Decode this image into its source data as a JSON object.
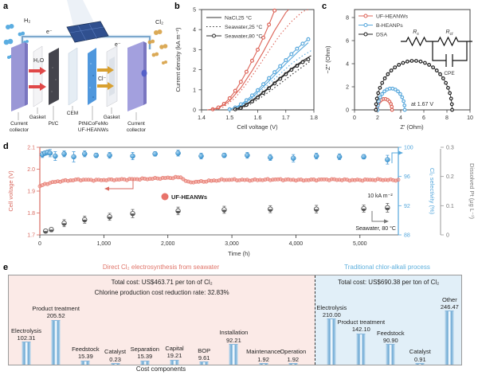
{
  "panels": {
    "a": "a",
    "b": "b",
    "c": "c",
    "d": "d",
    "e": "e"
  },
  "panel_a": {
    "labels": {
      "h2": "H₂",
      "cl2": "Cl₂",
      "e1": "e⁻",
      "e2": "e⁻",
      "h2o": "H₂O",
      "cl": "Cl⁻"
    },
    "components": [
      "Current collector",
      "Gasket",
      "Pt/C",
      "CEM",
      "PtNiCoFeMo UF-HEANWs",
      "Gasket",
      "Current collector"
    ]
  },
  "chart_data": [
    {
      "id": "b",
      "type": "line",
      "xlabel": "Cell voltage (V)",
      "ylabel": "Current density (kA m⁻²)",
      "xlim": [
        1.4,
        1.8
      ],
      "ylim": [
        0,
        5
      ],
      "xticks": [
        "1.4",
        "1.5",
        "1.6",
        "1.7",
        "1.8"
      ],
      "yticks": [
        "0",
        "1",
        "2",
        "3",
        "4",
        "5"
      ],
      "legend": [
        {
          "label": "NaCl,25 °C",
          "style": "solid"
        },
        {
          "label": "Seawater,25 °C",
          "style": "dotted"
        },
        {
          "label": "Seawater,80 °C",
          "style": "circles"
        }
      ],
      "series": [
        {
          "name": "UF-HEANWs-seawater-80C",
          "color": "#dd6458",
          "style": "circles",
          "points": [
            [
              1.44,
              0.03
            ],
            [
              1.46,
              0.12
            ],
            [
              1.48,
              0.3
            ],
            [
              1.5,
              0.58
            ],
            [
              1.52,
              0.95
            ],
            [
              1.54,
              1.4
            ],
            [
              1.56,
              1.9
            ],
            [
              1.58,
              2.45
            ],
            [
              1.6,
              3.0
            ],
            [
              1.62,
              3.6
            ],
            [
              1.64,
              4.25
            ],
            [
              1.66,
              4.95
            ]
          ]
        },
        {
          "name": "UF-HEANWs-NaCl-25C",
          "color": "#dd6458",
          "style": "solid",
          "points": [
            [
              1.42,
              0.0
            ],
            [
              1.46,
              0.08
            ],
            [
              1.5,
              0.45
            ],
            [
              1.54,
              1.1
            ],
            [
              1.58,
              1.95
            ],
            [
              1.62,
              2.9
            ],
            [
              1.66,
              3.95
            ],
            [
              1.7,
              4.85
            ],
            [
              1.71,
              5.0
            ]
          ]
        },
        {
          "name": "UF-HEANWs-seawater-25C",
          "color": "#dd6458",
          "style": "dotted",
          "points": [
            [
              1.44,
              0.0
            ],
            [
              1.48,
              0.15
            ],
            [
              1.52,
              0.6
            ],
            [
              1.56,
              1.3
            ],
            [
              1.6,
              2.1
            ],
            [
              1.64,
              2.95
            ],
            [
              1.68,
              3.75
            ],
            [
              1.72,
              4.4
            ],
            [
              1.76,
              4.9
            ],
            [
              1.78,
              5.0
            ]
          ]
        },
        {
          "name": "B-HEANPs-seawater-80C",
          "color": "#58a8dc",
          "style": "circles",
          "points": [
            [
              1.5,
              0.03
            ],
            [
              1.52,
              0.12
            ],
            [
              1.54,
              0.28
            ],
            [
              1.56,
              0.48
            ],
            [
              1.58,
              0.72
            ],
            [
              1.6,
              0.98
            ],
            [
              1.62,
              1.28
            ],
            [
              1.64,
              1.58
            ],
            [
              1.66,
              1.88
            ],
            [
              1.68,
              2.18
            ],
            [
              1.7,
              2.48
            ],
            [
              1.72,
              2.78
            ],
            [
              1.74,
              3.05
            ],
            [
              1.76,
              3.3
            ],
            [
              1.78,
              3.52
            ]
          ]
        },
        {
          "name": "B-HEANPs-NaCl-25C",
          "color": "#58a8dc",
          "style": "solid",
          "points": [
            [
              1.5,
              0.02
            ],
            [
              1.54,
              0.22
            ],
            [
              1.58,
              0.62
            ],
            [
              1.62,
              1.15
            ],
            [
              1.66,
              1.72
            ],
            [
              1.7,
              2.3
            ],
            [
              1.74,
              2.85
            ],
            [
              1.78,
              3.35
            ]
          ]
        },
        {
          "name": "B-HEANPs-seawater-25C",
          "color": "#58a8dc",
          "style": "dotted",
          "points": [
            [
              1.52,
              0.05
            ],
            [
              1.56,
              0.35
            ],
            [
              1.6,
              0.8
            ],
            [
              1.64,
              1.3
            ],
            [
              1.68,
              1.8
            ],
            [
              1.72,
              2.3
            ],
            [
              1.76,
              2.7
            ],
            [
              1.79,
              2.95
            ]
          ]
        },
        {
          "name": "DSA-seawater-80C",
          "color": "#2a2a2a",
          "style": "circles",
          "points": [
            [
              1.52,
              0.03
            ],
            [
              1.54,
              0.1
            ],
            [
              1.56,
              0.25
            ],
            [
              1.58,
              0.42
            ],
            [
              1.6,
              0.62
            ],
            [
              1.62,
              0.85
            ],
            [
              1.64,
              1.08
            ],
            [
              1.66,
              1.32
            ],
            [
              1.68,
              1.55
            ],
            [
              1.7,
              1.78
            ],
            [
              1.72,
              2.0
            ],
            [
              1.74,
              2.2
            ],
            [
              1.76,
              2.38
            ],
            [
              1.78,
              2.52
            ]
          ]
        },
        {
          "name": "DSA-NaCl-25C",
          "color": "#2a2a2a",
          "style": "solid",
          "points": [
            [
              1.52,
              0.02
            ],
            [
              1.56,
              0.28
            ],
            [
              1.6,
              0.68
            ],
            [
              1.64,
              1.12
            ],
            [
              1.68,
              1.6
            ],
            [
              1.72,
              2.05
            ],
            [
              1.76,
              2.45
            ],
            [
              1.79,
              2.7
            ]
          ]
        },
        {
          "name": "DSA-seawater-25C",
          "color": "#2a2a2a",
          "style": "dotted",
          "points": [
            [
              1.53,
              0.02
            ],
            [
              1.57,
              0.25
            ],
            [
              1.61,
              0.6
            ],
            [
              1.65,
              1.0
            ],
            [
              1.69,
              1.42
            ],
            [
              1.73,
              1.85
            ],
            [
              1.77,
              2.25
            ],
            [
              1.79,
              2.45
            ]
          ]
        }
      ]
    },
    {
      "id": "c",
      "type": "scatter",
      "xlabel": "Z′ (Ohm)",
      "ylabel": "−Z″ (Ohm)",
      "xlim": [
        0,
        10
      ],
      "ylim": [
        0,
        8
      ],
      "xticks": [
        "0",
        "2",
        "4",
        "6",
        "8",
        "10"
      ],
      "yticks": [
        "0",
        "2",
        "4",
        "6",
        "8"
      ],
      "annotation": "at 1.67 V",
      "series": [
        {
          "name": "UF-HEANWs",
          "color": "#dd6458",
          "arc": {
            "x0": 1.95,
            "x1": 3.25,
            "peak": 0.95,
            "n": 11
          }
        },
        {
          "name": "B-HEANPs",
          "color": "#58a8dc",
          "arc": {
            "x0": 2.0,
            "x1": 4.35,
            "peak": 1.85,
            "n": 15
          }
        },
        {
          "name": "DSA",
          "color": "#222222",
          "arc": {
            "x0": 1.85,
            "x1": 8.45,
            "peak": 4.25,
            "n": 27
          }
        }
      ],
      "circuit": {
        "rs": {
          "main": "R",
          "sub": "s"
        },
        "rct": {
          "main": "R",
          "sub": "ct"
        },
        "cpe": "CPE"
      }
    },
    {
      "id": "d",
      "type": "stability",
      "xlabel": "Time (h)",
      "xlim": [
        0,
        5600
      ],
      "xticks": [
        0,
        1000,
        2000,
        3000,
        4000,
        5000
      ],
      "xtick_labels": [
        "0",
        "1,000",
        "2,000",
        "3,000",
        "4,000",
        "5,000"
      ],
      "axes": {
        "voltage": {
          "label": "Cell voltage (V)",
          "color": "#d96a60",
          "ticks": [
            "1.7",
            "1.8",
            "1.9",
            "2.0",
            "2.1"
          ],
          "lim": [
            1.7,
            2.1
          ]
        },
        "selectivity": {
          "label": "Cl₂ selectivity (%)",
          "color": "#55a7dc",
          "ticks": [
            "88",
            "92",
            "96",
            "100"
          ],
          "lim": [
            88,
            100
          ]
        },
        "pt": {
          "label": "Dissolved Pt (μg L⁻¹)",
          "color": "#8a8a8a",
          "ticks": [
            "0",
            "0.1",
            "0.2",
            "0.3"
          ],
          "lim": [
            0,
            0.3
          ]
        }
      },
      "annotations": {
        "legend": "UF-HEANWs",
        "current": "10 kA m⁻²",
        "condition": "Seawater, 80 °C"
      },
      "voltage_anchors": [
        [
          0,
          1.922
        ],
        [
          120,
          1.935
        ],
        [
          300,
          1.945
        ],
        [
          600,
          1.952
        ],
        [
          900,
          1.95
        ],
        [
          1300,
          1.953
        ],
        [
          1700,
          1.956
        ],
        [
          2000,
          1.96
        ],
        [
          2200,
          1.963
        ],
        [
          2320,
          1.94
        ],
        [
          2550,
          1.944
        ],
        [
          2900,
          1.952
        ],
        [
          3300,
          1.95
        ],
        [
          3700,
          1.953
        ],
        [
          4100,
          1.95
        ],
        [
          4500,
          1.953
        ],
        [
          4900,
          1.95
        ],
        [
          5300,
          1.952
        ],
        [
          5600,
          1.95
        ]
      ],
      "selectivity_points": [
        [
          40,
          99.0,
          0.4
        ],
        [
          80,
          99.2,
          0.3
        ],
        [
          120,
          99.3,
          0.3
        ],
        [
          160,
          99.2,
          0.5
        ],
        [
          240,
          98.8,
          0.6
        ],
        [
          380,
          99.1,
          0.4
        ],
        [
          530,
          98.7,
          0.7
        ],
        [
          700,
          99.1,
          0.4
        ],
        [
          880,
          98.9,
          0.3
        ],
        [
          1090,
          98.9,
          0.4
        ],
        [
          1450,
          98.8,
          0.5
        ],
        [
          1800,
          99.1,
          0.3
        ],
        [
          2160,
          99.2,
          0.4
        ],
        [
          2520,
          98.8,
          0.4
        ],
        [
          2880,
          98.9,
          0.3
        ],
        [
          3240,
          98.9,
          0.4
        ],
        [
          3600,
          98.6,
          0.4
        ],
        [
          3960,
          98.5,
          0.5
        ],
        [
          4320,
          98.8,
          0.4
        ],
        [
          4680,
          98.7,
          0.4
        ],
        [
          5060,
          98.7,
          0.3
        ],
        [
          5430,
          98.3,
          0.6
        ]
      ],
      "pt_points": [
        [
          90,
          0.013,
          0.006
        ],
        [
          180,
          0.018,
          0.007
        ],
        [
          380,
          0.04,
          0.012
        ],
        [
          700,
          0.052,
          0.012
        ],
        [
          1090,
          0.062,
          0.012
        ],
        [
          1450,
          0.073,
          0.014
        ],
        [
          2160,
          0.082,
          0.013
        ],
        [
          2880,
          0.086,
          0.012
        ],
        [
          3600,
          0.088,
          0.012
        ],
        [
          4320,
          0.088,
          0.013
        ],
        [
          5060,
          0.09,
          0.012
        ],
        [
          5430,
          0.093,
          0.015
        ]
      ]
    },
    {
      "id": "e",
      "type": "bar",
      "xlabel": "Cost components",
      "bar_color": "#a9cde9",
      "groups": [
        {
          "title": "Direct Cl₂ electrosynthesis from seawater",
          "header": [
            "Total cost: US$463.71 per ton of Cl₂",
            "Chlorine production cost reduction rate: 32.83%"
          ],
          "categories": [
            "Electrolysis",
            "Product treatment",
            "Feedstock",
            "Catalyst",
            "Separation",
            "Capital",
            "BOP",
            "Installation",
            "Maintenance",
            "Operation"
          ],
          "values": [
            102.31,
            205.52,
            15.39,
            0.23,
            15.39,
            19.21,
            9.61,
            92.21,
            1.92,
            1.92
          ],
          "value_labels": [
            "102.31",
            "205.52",
            "15.39",
            "0.23",
            "15.39",
            "19.21",
            "9.61",
            "92.21",
            "1.92",
            "1.92"
          ]
        },
        {
          "title": "Traditional chlor-alkali process",
          "header": [
            "Total cost: US$690.38 per ton of Cl₂"
          ],
          "categories": [
            "Electrolysis",
            "Product treatment",
            "Feedstock",
            "Catalyst",
            "Other"
          ],
          "values": [
            210.0,
            142.1,
            90.9,
            0.91,
            246.47
          ],
          "value_labels": [
            "210.00",
            "142.10",
            "90.90",
            "0.91",
            "246.47"
          ]
        }
      ]
    }
  ]
}
